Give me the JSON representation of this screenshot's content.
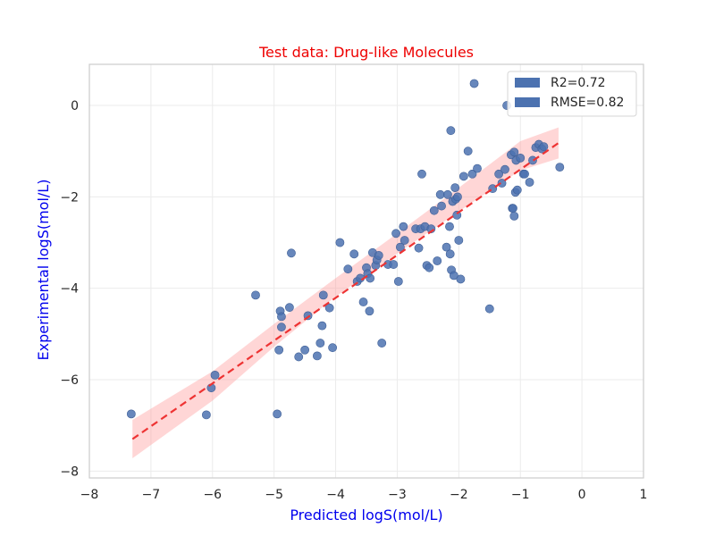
{
  "chart_data": {
    "type": "scatter",
    "title": "Test data: Drug-like Molecules",
    "title_color": "#ee0000",
    "xlabel": "Predicted logS(mol/L)",
    "ylabel": "Experimental logS(mol/L)",
    "label_color": "#0000ee",
    "xlim": [
      -8,
      1
    ],
    "ylim": [
      -8.15,
      0.9
    ],
    "xticks": [
      -8,
      -7,
      -6,
      -5,
      -4,
      -3,
      -2,
      -1,
      0,
      1
    ],
    "yticks": [
      -8,
      -6,
      -4,
      -2,
      0
    ],
    "grid": true,
    "legend": {
      "placement": "top-right",
      "entries": [
        "R2=0.72",
        "RMSE=0.82"
      ]
    },
    "colors": {
      "points": "#4c72b0",
      "fit_line": "#ee3333",
      "band": "#ff9999"
    },
    "fit_line": {
      "x": [
        -7.3,
        -0.38
      ],
      "y": [
        -7.3,
        -0.82
      ]
    },
    "confidence_band": {
      "x": [
        -7.3,
        -6.0,
        -5.0,
        -4.0,
        -3.0,
        -2.0,
        -1.0,
        -0.38
      ],
      "upper": [
        -6.88,
        -5.82,
        -4.78,
        -3.78,
        -2.8,
        -1.8,
        -0.78,
        -0.48
      ],
      "lower": [
        -7.72,
        -6.46,
        -5.28,
        -4.18,
        -3.24,
        -2.32,
        -1.42,
        -1.16
      ]
    },
    "points": {
      "x": [
        -7.32,
        -6.1,
        -6.02,
        -5.96,
        -5.3,
        -4.95,
        -4.92,
        -4.9,
        -4.88,
        -4.88,
        -4.75,
        -4.72,
        -4.6,
        -4.5,
        -4.45,
        -4.3,
        -4.25,
        -4.22,
        -4.2,
        -4.1,
        -4.05,
        -3.93,
        -3.8,
        -3.7,
        -3.65,
        -3.6,
        -3.55,
        -3.5,
        -3.48,
        -3.45,
        -3.44,
        -3.4,
        -3.35,
        -3.33,
        -3.3,
        -3.25,
        -3.15,
        -3.06,
        -3.02,
        -2.98,
        -2.95,
        -2.9,
        -2.88,
        -2.7,
        -2.65,
        -2.62,
        -2.6,
        -2.55,
        -2.52,
        -2.48,
        -2.45,
        -2.4,
        -2.35,
        -2.3,
        -2.28,
        -2.2,
        -2.18,
        -2.15,
        -2.14,
        -2.13,
        -2.12,
        -2.1,
        -2.08,
        -2.06,
        -2.05,
        -2.03,
        -2.02,
        -2.0,
        -1.97,
        -1.92,
        -1.85,
        -1.78,
        -1.75,
        -1.7,
        -1.5,
        -1.45,
        -1.35,
        -1.3,
        -1.25,
        -1.22,
        -1.15,
        -1.13,
        -1.12,
        -1.1,
        -1.1,
        -1.08,
        -1.07,
        -1.05,
        -1.0,
        -0.95,
        -0.93,
        -0.85,
        -0.8,
        -0.75,
        -0.7,
        -0.65,
        -0.62,
        -0.36
      ],
      "y": [
        -6.75,
        -6.77,
        -6.18,
        -5.9,
        -4.15,
        -6.75,
        -5.35,
        -4.5,
        -4.85,
        -4.62,
        -4.42,
        -3.23,
        -5.5,
        -5.35,
        -4.6,
        -5.48,
        -5.2,
        -4.82,
        -4.15,
        -4.43,
        -5.3,
        -3.0,
        -3.58,
        -3.25,
        -3.85,
        -3.78,
        -4.3,
        -3.55,
        -3.68,
        -4.5,
        -3.78,
        -3.22,
        -3.5,
        -3.38,
        -3.28,
        -5.2,
        -3.48,
        -3.48,
        -2.8,
        -3.85,
        -3.1,
        -2.65,
        -2.95,
        -2.7,
        -3.12,
        -2.7,
        -1.5,
        -2.65,
        -3.5,
        -3.55,
        -2.7,
        -2.3,
        -3.4,
        -1.95,
        -2.2,
        -3.1,
        -1.95,
        -2.65,
        -3.25,
        -0.55,
        -3.6,
        -2.1,
        -3.72,
        -1.8,
        -2.05,
        -2.4,
        -2.0,
        -2.95,
        -3.8,
        -1.55,
        -1.0,
        -1.5,
        0.48,
        -1.38,
        -4.45,
        -1.82,
        -1.5,
        -1.7,
        -1.4,
        0.0,
        -1.08,
        -2.25,
        -2.25,
        -1.02,
        -2.42,
        -1.9,
        -1.2,
        -1.85,
        -1.15,
        -1.5,
        -1.5,
        -1.68,
        -1.2,
        -0.92,
        -0.85,
        -0.95,
        -0.9,
        -1.35
      ]
    }
  }
}
